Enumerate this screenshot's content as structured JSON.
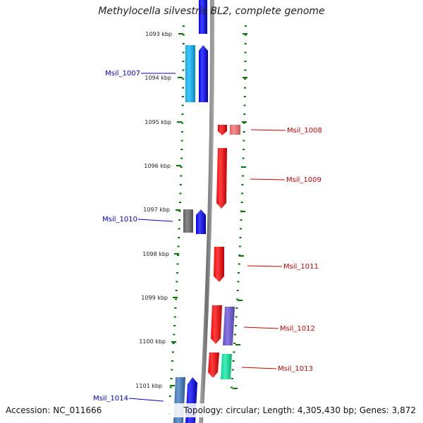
{
  "title": "Methylocella silvestris BL2, complete genome",
  "footer": {
    "accession": "Accession: NC_011666",
    "topology": "Topology: circular; Length: 4,305,430 bp; Genes: 3,872"
  },
  "ticks": [
    "1093 kbp",
    "1094 kbp",
    "1095 kbp",
    "1096 kbp",
    "1097 kbp",
    "1098 kbp",
    "1099 kbp",
    "1100 kbp",
    "1101 kbp"
  ],
  "colors": {
    "forward_cds": "#0000ff",
    "forward_other": "#1ea5e0",
    "reverse_cds": "#ff0000",
    "grey_gene": "#707070",
    "purple_gene": "#7060d0",
    "green_gene": "#10e0a0",
    "pink_gene": "#f07070",
    "steel_gene": "#4a7ab0",
    "label_left": "#0000cc",
    "label_right": "#cc0000",
    "tick_green": "#007700",
    "backbone": "#808080"
  },
  "labels": {
    "left": [
      "Msil_1007",
      "Msil_1010",
      "Msil_1014"
    ],
    "right": [
      "Msil_1008",
      "Msil_1009",
      "Msil_1011",
      "Msil_1012",
      "Msil_1013"
    ]
  }
}
